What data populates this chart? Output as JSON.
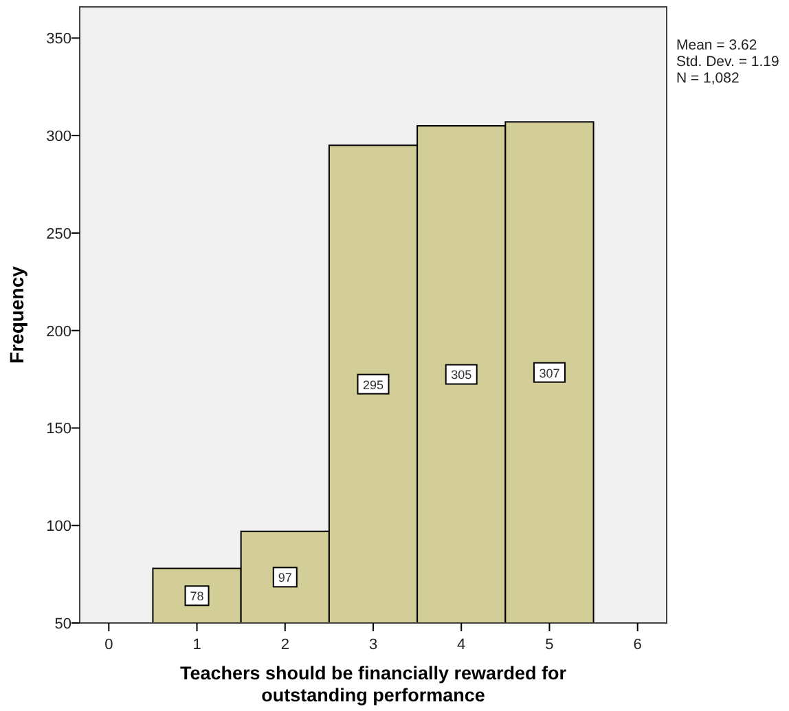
{
  "chart_data": {
    "type": "histogram",
    "xlabel": "Teachers should be financially rewarded for outstanding performance",
    "ylabel": "Frequency",
    "bins": [
      0.5,
      1.5,
      2.5,
      3.5,
      4.5,
      5.5
    ],
    "values": [
      78,
      97,
      295,
      305,
      307
    ],
    "color": "#d3ce97",
    "xlim": [
      -0.33,
      6.33
    ],
    "xticks": [
      0,
      1,
      2,
      3,
      4,
      5,
      6
    ],
    "ylim": [
      50,
      366
    ],
    "yticks": [
      50,
      100,
      150,
      200,
      250,
      300,
      350
    ],
    "data_labels": true,
    "grid": false,
    "annotations": [
      "Mean = 3.62",
      "Std. Dev. = 1.19",
      "N = 1,082"
    ]
  }
}
